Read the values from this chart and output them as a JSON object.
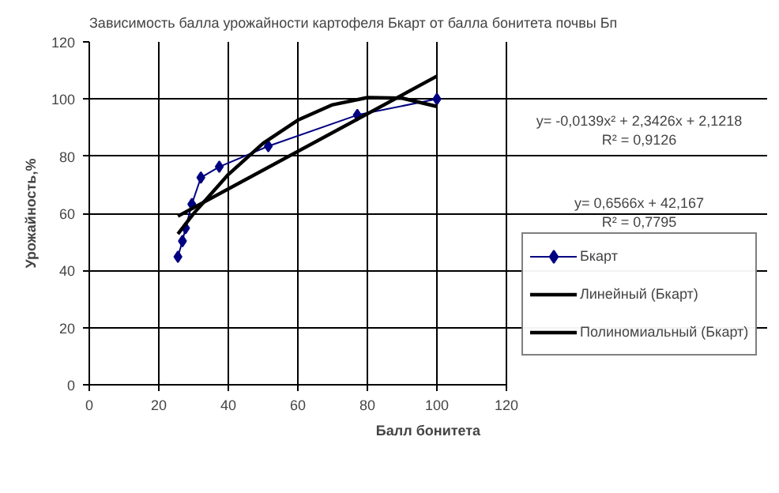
{
  "chart_data": {
    "type": "line",
    "title": "Зависимость балла урожайности картофеля Бкарт от балла бонитета почвы Бп",
    "xlabel": "Балл бонитета",
    "ylabel": "Урожайность,%",
    "xlim": [
      0,
      120
    ],
    "xticks": [
      0,
      20,
      40,
      60,
      80,
      100,
      120
    ],
    "ylim": [
      0,
      120
    ],
    "yticks": [
      0,
      20,
      40,
      60,
      80,
      100,
      120
    ],
    "grid": true,
    "legend": "right",
    "line_style": "solid",
    "annotations": [
      "y= -0,0139x² + 2,3426x + 2,1218\nR² = 0,9126",
      "y= 0,6566x + 42,167\nR² = 0,7795"
    ],
    "series": [
      {
        "name": "Бкарт",
        "color": "#000080",
        "marker": "diamond",
        "x": [
          25.5,
          26.8,
          27.7,
          29.5,
          32.1,
          37.4,
          51.5,
          77.1,
          100
        ],
        "values": [
          44.8,
          50.3,
          54.8,
          63.2,
          72.5,
          76.3,
          83.5,
          94.4,
          100
        ]
      },
      {
        "name": "Линейный (Бкарт)",
        "color": "#000000",
        "marker": "none",
        "x": [
          25.5,
          100
        ],
        "values": [
          59,
          108
        ]
      },
      {
        "name": "Полиномиальный (Бкарт)",
        "color": "#000000",
        "marker": "none",
        "x": [
          25.5,
          30,
          40,
          50,
          60,
          70,
          80,
          90,
          100
        ],
        "values": [
          52.8,
          59.9,
          73.6,
          84.5,
          92.6,
          98.0,
          100.5,
          100.3,
          97.4
        ]
      }
    ]
  }
}
